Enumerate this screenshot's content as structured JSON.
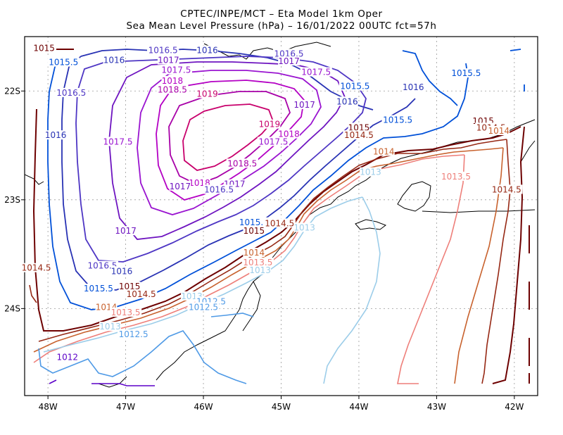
{
  "title": {
    "line1": "CPTEC/INPE/MCT –  Eta Model 1km Oper",
    "line2": "Sea Mean Level Pressure (hPa) – 16/01/2022 00UTC fct=57h"
  },
  "map": {
    "lon_range": [
      -48.3,
      -41.7
    ],
    "lat_range": [
      -24.8,
      -21.5
    ],
    "lon_ticks": [
      {
        "value": -48,
        "label": "48W"
      },
      {
        "value": -47,
        "label": "47W"
      },
      {
        "value": -46,
        "label": "46W"
      },
      {
        "value": -45,
        "label": "45W"
      },
      {
        "value": -44,
        "label": "44W"
      },
      {
        "value": -43,
        "label": "43W"
      },
      {
        "value": -42,
        "label": "42W"
      }
    ],
    "lat_ticks": [
      {
        "value": -22,
        "label": "22S"
      },
      {
        "value": -23,
        "label": "23S"
      },
      {
        "value": -24,
        "label": "24S"
      }
    ],
    "grid": true,
    "colors": {
      "1012": "#5b00c8",
      "1012.5": "#4f9ae6",
      "1013": "#9ccde9",
      "1013.5": "#ee7f7a",
      "1014": "#c8622e",
      "1014.5": "#962814",
      "1015": "#6d0000",
      "1015.5": "#0050d8",
      "1016": "#2832b4",
      "1016.5": "#4e36c4",
      "1017": "#6e14c0",
      "1017.5": "#9a14d0",
      "1018": "#b400c4",
      "1018.5": "#a800a8",
      "1019": "#c8006c"
    }
  },
  "labels": [
    {
      "text": "1015",
      "lon": -48.05,
      "lat": -21.62,
      "level": "1015"
    },
    {
      "text": "1015.5",
      "lon": -47.8,
      "lat": -21.75,
      "level": "1015.5"
    },
    {
      "text": "1016",
      "lon": -47.15,
      "lat": -21.73,
      "level": "1016"
    },
    {
      "text": "1016.5",
      "lon": -46.52,
      "lat": -21.64,
      "level": "1016.5"
    },
    {
      "text": "1016",
      "lon": -45.95,
      "lat": -21.64,
      "level": "1016"
    },
    {
      "text": "1017",
      "lon": -46.45,
      "lat": -21.73,
      "level": "1017"
    },
    {
      "text": "1017.5",
      "lon": -46.35,
      "lat": -21.82,
      "level": "1017.5"
    },
    {
      "text": "1018",
      "lon": -46.4,
      "lat": -21.92,
      "level": "1018"
    },
    {
      "text": "1016.5",
      "lon": -44.9,
      "lat": -21.67,
      "level": "1016.5"
    },
    {
      "text": "1017",
      "lon": -44.9,
      "lat": -21.74,
      "level": "1017"
    },
    {
      "text": "1017.5",
      "lon": -44.55,
      "lat": -21.84,
      "level": "1017.5"
    },
    {
      "text": "1015.5",
      "lon": -42.62,
      "lat": -21.85,
      "level": "1015.5"
    },
    {
      "text": "1016",
      "lon": -43.3,
      "lat": -21.98,
      "level": "1016"
    },
    {
      "text": "1016.5",
      "lon": -47.7,
      "lat": -22.03,
      "level": "1016.5"
    },
    {
      "text": "1018.5",
      "lon": -46.4,
      "lat": -22.0,
      "level": "1018.5"
    },
    {
      "text": "1019",
      "lon": -45.95,
      "lat": -22.04,
      "level": "1019"
    },
    {
      "text": "1015.5",
      "lon": -44.05,
      "lat": -21.97,
      "level": "1015.5"
    },
    {
      "text": "1016",
      "lon": -44.15,
      "lat": -22.11,
      "level": "1016"
    },
    {
      "text": "1017",
      "lon": -44.7,
      "lat": -22.14,
      "level": "1017"
    },
    {
      "text": "1019",
      "lon": -45.15,
      "lat": -22.32,
      "level": "1019"
    },
    {
      "text": "1018",
      "lon": -44.9,
      "lat": -22.41,
      "level": "1018"
    },
    {
      "text": "1017.5",
      "lon": -45.1,
      "lat": -22.48,
      "level": "1017.5"
    },
    {
      "text": "1015.5",
      "lon": -43.5,
      "lat": -22.28,
      "level": "1015.5"
    },
    {
      "text": "1015",
      "lon": -42.4,
      "lat": -22.29,
      "level": "1015"
    },
    {
      "text": "1014.5",
      "lon": -42.3,
      "lat": -22.35,
      "level": "1014.5"
    },
    {
      "text": "1014",
      "lon": -42.2,
      "lat": -22.38,
      "level": "1014"
    },
    {
      "text": "1015",
      "lon": -44.0,
      "lat": -22.35,
      "level": "1015"
    },
    {
      "text": "1014.5",
      "lon": -44.0,
      "lat": -22.42,
      "level": "1014.5"
    },
    {
      "text": "1016",
      "lon": -47.9,
      "lat": -22.42,
      "level": "1016"
    },
    {
      "text": "1017.5",
      "lon": -47.1,
      "lat": -22.48,
      "level": "1017.5"
    },
    {
      "text": "1014",
      "lon": -43.68,
      "lat": -22.57,
      "level": "1014"
    },
    {
      "text": "1018.5",
      "lon": -45.5,
      "lat": -22.68,
      "level": "1018.5"
    },
    {
      "text": "1013",
      "lon": -43.85,
      "lat": -22.76,
      "level": "1013"
    },
    {
      "text": "1013.5",
      "lon": -42.75,
      "lat": -22.8,
      "level": "1013.5"
    },
    {
      "text": "1018",
      "lon": -46.05,
      "lat": -22.86,
      "level": "1018"
    },
    {
      "text": "1017",
      "lon": -46.3,
      "lat": -22.89,
      "level": "1017"
    },
    {
      "text": "1017",
      "lon": -45.6,
      "lat": -22.87,
      "level": "1017"
    },
    {
      "text": "1016.5",
      "lon": -45.8,
      "lat": -22.92,
      "level": "1016.5"
    },
    {
      "text": "1014.5",
      "lon": -42.1,
      "lat": -22.92,
      "level": "1014.5"
    },
    {
      "text": "1015.5",
      "lon": -45.35,
      "lat": -23.22,
      "level": "1015.5"
    },
    {
      "text": "1015",
      "lon": -45.35,
      "lat": -23.3,
      "level": "1015"
    },
    {
      "text": "1014.5",
      "lon": -45.02,
      "lat": -23.23,
      "level": "1014.5"
    },
    {
      "text": "1013",
      "lon": -44.7,
      "lat": -23.27,
      "level": "1013"
    },
    {
      "text": "1017",
      "lon": -47.0,
      "lat": -23.3,
      "level": "1017"
    },
    {
      "text": "1014",
      "lon": -45.35,
      "lat": -23.5,
      "level": "1014"
    },
    {
      "text": "1013.5",
      "lon": -45.3,
      "lat": -23.59,
      "level": "1013.5"
    },
    {
      "text": "1013",
      "lon": -45.27,
      "lat": -23.66,
      "level": "1013"
    },
    {
      "text": "1014.5",
      "lon": -48.15,
      "lat": -23.64,
      "level": "1014.5"
    },
    {
      "text": "1016.5",
      "lon": -47.3,
      "lat": -23.62,
      "level": "1016.5"
    },
    {
      "text": "1016",
      "lon": -47.05,
      "lat": -23.67,
      "level": "1016"
    },
    {
      "text": "1015.5",
      "lon": -47.35,
      "lat": -23.83,
      "level": "1015.5"
    },
    {
      "text": "1015",
      "lon": -46.95,
      "lat": -23.81,
      "level": "1015"
    },
    {
      "text": "1014.5",
      "lon": -46.8,
      "lat": -23.88,
      "level": "1014.5"
    },
    {
      "text": "1013",
      "lon": -46.15,
      "lat": -23.9,
      "level": "1013"
    },
    {
      "text": "1012.5",
      "lon": -45.9,
      "lat": -23.95,
      "level": "1012.5"
    },
    {
      "text": "1012.5",
      "lon": -46.0,
      "lat": -24.0,
      "level": "1012.5"
    },
    {
      "text": "1014",
      "lon": -47.25,
      "lat": -24.0,
      "level": "1014"
    },
    {
      "text": "1013.5",
      "lon": -47.0,
      "lat": -24.05,
      "level": "1013.5"
    },
    {
      "text": "1013",
      "lon": -47.2,
      "lat": -24.18,
      "level": "1013"
    },
    {
      "text": "1012.5",
      "lon": -46.9,
      "lat": -24.25,
      "level": "1012.5"
    },
    {
      "text": "1012",
      "lon": -47.75,
      "lat": -24.46,
      "level": "1012"
    }
  ]
}
